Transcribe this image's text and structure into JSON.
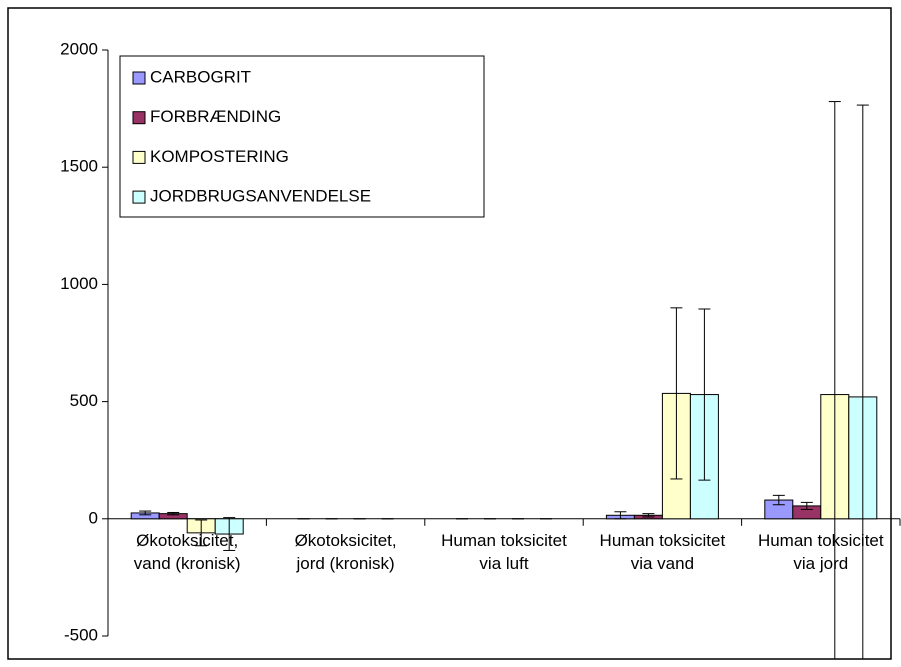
{
  "chart_data": {
    "type": "bar",
    "categories": [
      "Økotoksicitet, vand (kronisk)",
      "Økotoksicitet, jord (kronisk)",
      "Human toksicitet via luft",
      "Human toksicitet via vand",
      "Human toksicitet via jord"
    ],
    "series": [
      {
        "name": "CARBOGRIT",
        "color": "#9999ff",
        "values": [
          25,
          0,
          0,
          15,
          80
        ],
        "errors": [
          8,
          0,
          0,
          15,
          20
        ]
      },
      {
        "name": "FORBRÆNDING",
        "color": "#993366",
        "values": [
          22,
          0,
          0,
          15,
          55
        ],
        "errors": [
          5,
          0,
          0,
          7,
          15
        ]
      },
      {
        "name": "KOMPOSTERING",
        "color": "#ffffcc",
        "values": [
          -60,
          0,
          0,
          535,
          530
        ],
        "errors": [
          55,
          0,
          0,
          365,
          1250
        ]
      },
      {
        "name": "JORDBRUGSANVENDELSE",
        "color": "#ccffff",
        "values": [
          -65,
          0,
          0,
          530,
          520
        ],
        "errors": [
          70,
          0,
          0,
          365,
          1245
        ]
      }
    ],
    "ylim": [
      -500,
      2000
    ],
    "yticks": [
      -500,
      0,
      500,
      1000,
      1500,
      2000
    ],
    "legend": "upper left"
  }
}
